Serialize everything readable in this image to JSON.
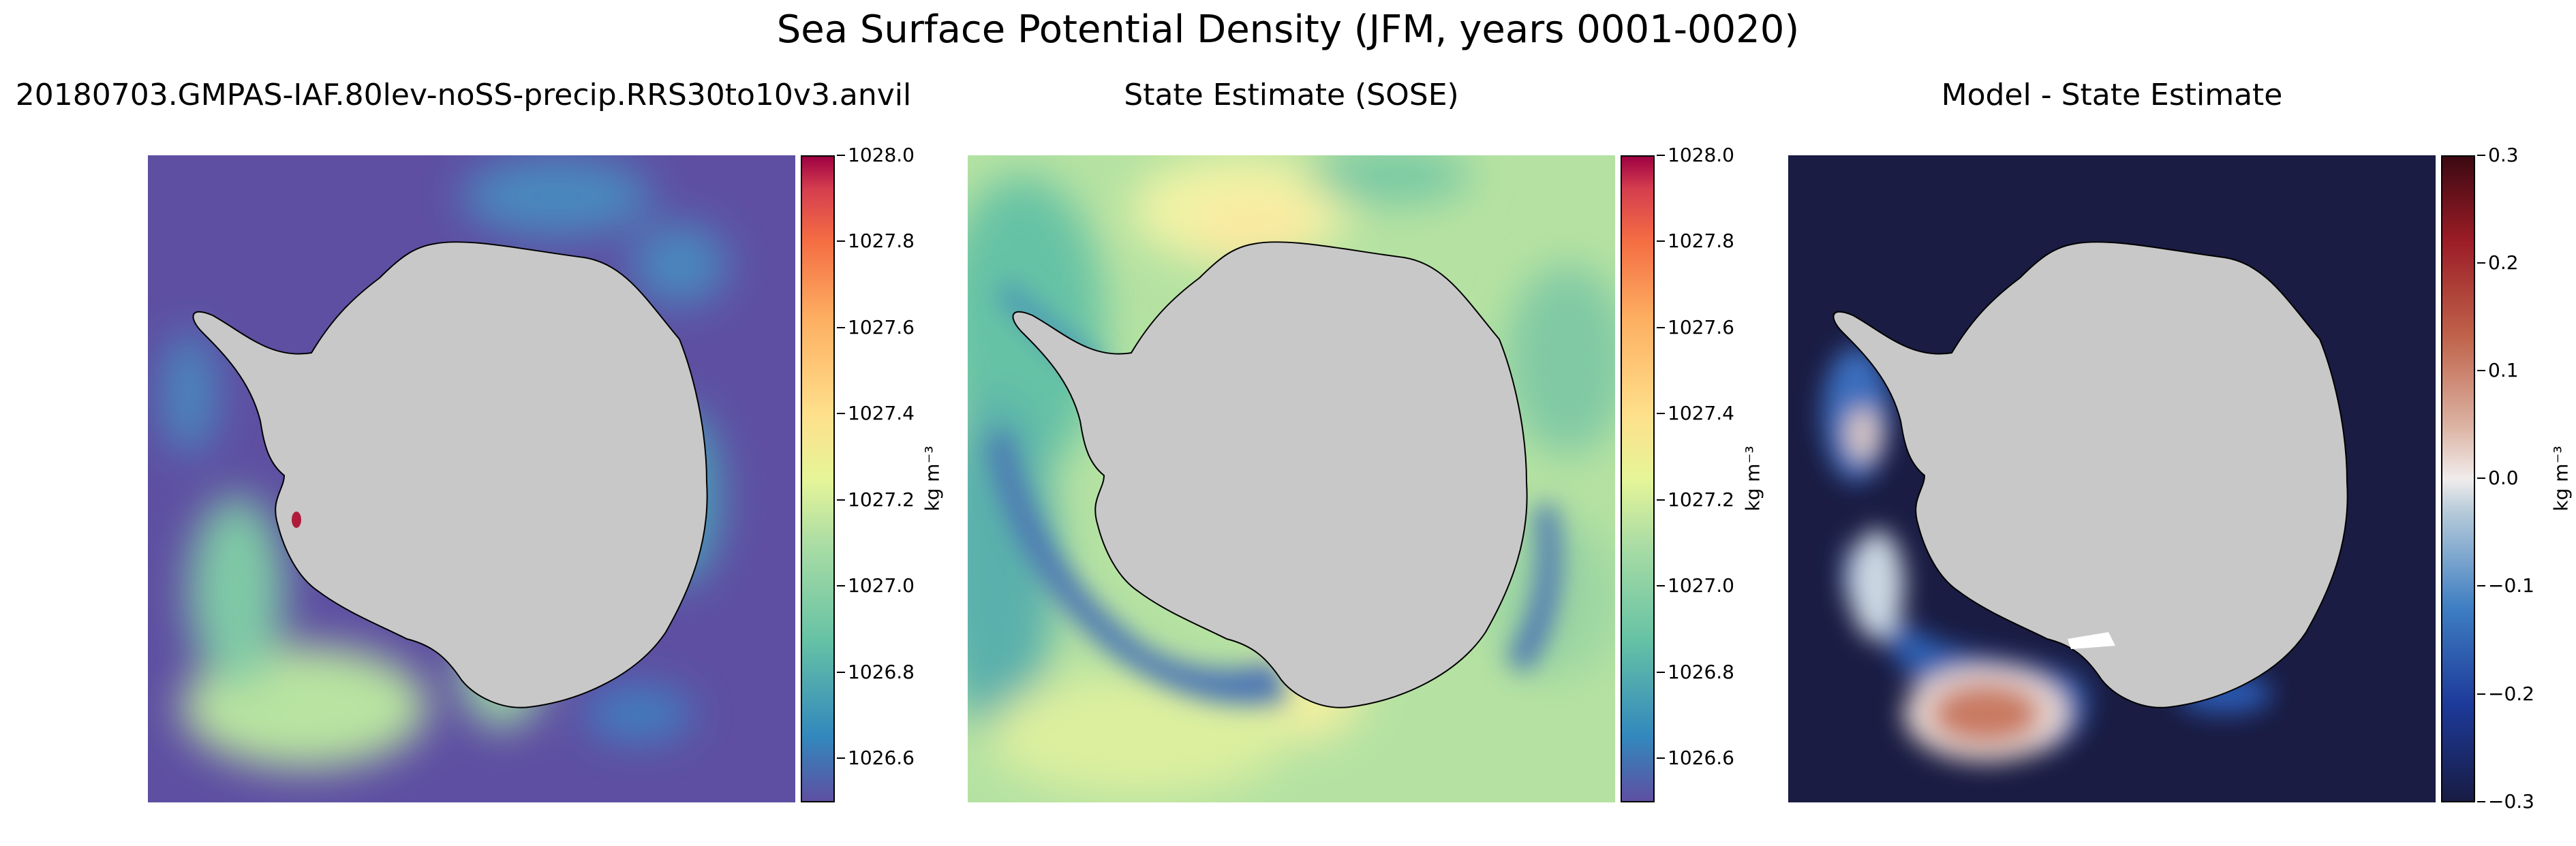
{
  "figure": {
    "title": "Sea Surface Potential Density (JFM, years 0001-0020)"
  },
  "panels": [
    {
      "title": "20180703.GMPAS-IAF.80lev-noSS-precip.RRS30to10v3.anvil",
      "colormap": "spectral_r",
      "colorbar": {
        "label": "kg m⁻³",
        "range": [
          1026.5,
          1028.0
        ],
        "ticks": [
          "1026.6",
          "1026.8",
          "1027.0",
          "1027.2",
          "1027.4",
          "1027.6",
          "1027.8",
          "1028.0"
        ]
      }
    },
    {
      "title": "State Estimate (SOSE)",
      "colormap": "spectral_r",
      "colorbar": {
        "label": "kg m⁻³",
        "range": [
          1026.5,
          1028.0
        ],
        "ticks": [
          "1026.6",
          "1026.8",
          "1027.0",
          "1027.2",
          "1027.4",
          "1027.6",
          "1027.8",
          "1028.0"
        ]
      }
    },
    {
      "title": "Model - State Estimate",
      "colormap": "balance",
      "colorbar": {
        "label": "kg m⁻³",
        "range": [
          -0.3,
          0.3
        ],
        "ticks": [
          "−0.3",
          "−0.2",
          "−0.1",
          "0.0",
          "0.1",
          "0.2",
          "0.3"
        ]
      }
    }
  ],
  "colors": {
    "land": "#c8c8c8",
    "spectral_low": "#5e4fa2",
    "spectral_high": "#9e0142",
    "balance_low": "#181c43",
    "balance_high": "#3c0912"
  }
}
